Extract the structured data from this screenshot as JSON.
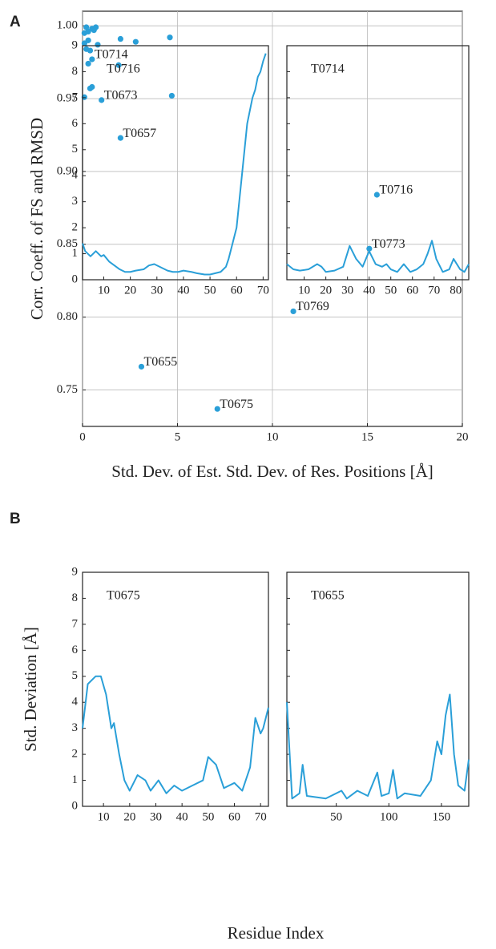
{
  "panel_labels": [
    "A",
    "B"
  ],
  "shared_axes": {
    "y_label": "Std. Deviation [Å]",
    "x_label": "Residue Index"
  },
  "chart_data": [
    {
      "type": "scatter",
      "x_label": "Std. Dev. of Est. Std. Dev. of Res. Positions [Å]",
      "y_label": "Corr. Coeff. of FS and RMSD",
      "color": "#2a9fd8",
      "x": [
        0.2,
        0.5,
        0.7,
        0.3,
        0.6,
        0.1,
        0.3,
        0.8,
        0.1,
        0.4,
        0.2,
        0.5,
        0.3,
        2.0,
        2.8,
        4.6,
        1.9,
        0.5,
        0.4,
        0.1,
        1.0,
        4.7,
        2.0,
        15.5,
        15.1,
        11.1,
        3.1,
        7.1
      ],
      "y": [
        0.999,
        0.998,
        0.999,
        0.996,
        0.997,
        0.995,
        0.99,
        0.987,
        0.988,
        0.983,
        0.984,
        0.977,
        0.974,
        0.991,
        0.989,
        0.992,
        0.973,
        0.958,
        0.957,
        0.951,
        0.949,
        0.952,
        0.923,
        0.884,
        0.847,
        0.804,
        0.766,
        0.737
      ],
      "annotations": [
        {
          "text": "T0714",
          "x": 0.5,
          "y": 0.977
        },
        {
          "text": "T0673",
          "x": 1.0,
          "y": 0.949
        },
        {
          "text": "T0657",
          "x": 2.0,
          "y": 0.923
        },
        {
          "text": "T0716",
          "x": 15.5,
          "y": 0.884
        },
        {
          "text": "T0773",
          "x": 15.1,
          "y": 0.847
        },
        {
          "text": "T0769",
          "x": 11.1,
          "y": 0.804
        },
        {
          "text": "T0655",
          "x": 3.1,
          "y": 0.766
        },
        {
          "text": "T0675",
          "x": 7.1,
          "y": 0.737
        }
      ],
      "xlim": [
        0,
        20
      ],
      "xticks": [
        0,
        5,
        10,
        15,
        20
      ],
      "ylim": [
        0.725,
        1.01
      ],
      "yticks": [
        {
          "value": 0.75,
          "label": "0.75"
        },
        {
          "value": 0.8,
          "label": "0.80"
        },
        {
          "value": 0.85,
          "label": "0.85"
        },
        {
          "value": 0.9,
          "label": "0.90"
        },
        {
          "value": 0.95,
          "label": "0.95"
        },
        {
          "value": 1.0,
          "label": "1.00"
        }
      ],
      "grid": true
    },
    {
      "type": "line",
      "title": "T0716",
      "color": "#2a9fd8",
      "x": [
        2,
        3,
        5,
        7,
        9,
        10,
        12,
        14,
        16,
        18,
        20,
        22,
        25,
        27,
        29,
        31,
        32,
        34,
        36,
        38,
        40,
        43,
        45,
        48,
        50,
        52,
        54,
        56,
        57,
        58,
        59,
        60,
        61,
        62,
        63,
        64,
        65,
        66,
        67,
        68,
        69,
        70,
        71
      ],
      "values": [
        1.4,
        1.1,
        0.9,
        1.1,
        0.9,
        0.95,
        0.7,
        0.55,
        0.4,
        0.3,
        0.3,
        0.35,
        0.4,
        0.55,
        0.6,
        0.5,
        0.45,
        0.35,
        0.3,
        0.3,
        0.35,
        0.3,
        0.25,
        0.2,
        0.2,
        0.25,
        0.3,
        0.5,
        0.8,
        1.2,
        1.6,
        2.0,
        3.0,
        4.0,
        5.0,
        6.0,
        6.5,
        7.0,
        7.3,
        7.8,
        8.0,
        8.4,
        8.7
      ],
      "xlim": [
        2,
        72
      ],
      "xticks": [
        10,
        20,
        30,
        40,
        50,
        60,
        70
      ],
      "ylim": [
        0,
        9
      ],
      "yticks": [
        0,
        1,
        2,
        3,
        4,
        5,
        6,
        7,
        8,
        9
      ],
      "grid": false
    },
    {
      "type": "line",
      "title": "T0714",
      "color": "#2a9fd8",
      "x": [
        2,
        5,
        8,
        12,
        16,
        18,
        20,
        24,
        28,
        31,
        34,
        37,
        40,
        43,
        46,
        48,
        50,
        53,
        56,
        59,
        62,
        65,
        67,
        69,
        71,
        74,
        77,
        79,
        82,
        84,
        86
      ],
      "values": [
        0.6,
        0.4,
        0.35,
        0.4,
        0.6,
        0.5,
        0.3,
        0.35,
        0.5,
        1.3,
        0.8,
        0.5,
        1.1,
        0.6,
        0.5,
        0.6,
        0.4,
        0.3,
        0.6,
        0.3,
        0.4,
        0.6,
        1.0,
        1.5,
        0.8,
        0.3,
        0.4,
        0.8,
        0.4,
        0.3,
        0.6
      ],
      "xlim": [
        2,
        86
      ],
      "xticks": [
        10,
        20,
        30,
        40,
        50,
        60,
        70,
        80
      ],
      "ylim": [
        0,
        9
      ],
      "yticks": [
        0,
        1,
        2,
        3,
        4,
        5,
        6,
        7,
        8,
        9
      ],
      "grid": false
    },
    {
      "type": "line",
      "title": "T0675",
      "color": "#2a9fd8",
      "x": [
        2,
        4,
        7,
        9,
        11,
        13,
        14,
        16,
        18,
        20,
        23,
        26,
        28,
        31,
        34,
        37,
        40,
        44,
        48,
        50,
        53,
        56,
        60,
        63,
        66,
        68,
        70,
        71,
        73
      ],
      "values": [
        3.0,
        4.7,
        5.0,
        5.0,
        4.3,
        3.0,
        3.2,
        2.0,
        1.0,
        0.6,
        1.2,
        1.0,
        0.6,
        1.0,
        0.5,
        0.8,
        0.6,
        0.8,
        1.0,
        1.9,
        1.6,
        0.7,
        0.9,
        0.6,
        1.5,
        3.4,
        2.8,
        3.0,
        3.8
      ],
      "xlim": [
        2,
        73
      ],
      "xticks": [
        10,
        20,
        30,
        40,
        50,
        60,
        70
      ],
      "ylim": [
        0,
        9
      ],
      "yticks": [
        0,
        1,
        2,
        3,
        4,
        5,
        6,
        7,
        8,
        9
      ],
      "grid": false
    },
    {
      "type": "line",
      "title": "T0655",
      "color": "#2a9fd8",
      "x": [
        3,
        8,
        15,
        18,
        22,
        40,
        55,
        60,
        70,
        80,
        89,
        93,
        100,
        104,
        108,
        115,
        130,
        140,
        146,
        150,
        154,
        158,
        162,
        166,
        172,
        176
      ],
      "values": [
        4.0,
        0.3,
        0.5,
        1.6,
        0.4,
        0.3,
        0.6,
        0.3,
        0.6,
        0.4,
        1.3,
        0.4,
        0.5,
        1.4,
        0.3,
        0.5,
        0.4,
        1.0,
        2.5,
        2.0,
        3.5,
        4.3,
        2.0,
        0.8,
        0.6,
        1.8
      ],
      "xlim": [
        3,
        176
      ],
      "xticks": [
        50,
        100,
        150
      ],
      "ylim": [
        0,
        9
      ],
      "yticks": [
        0,
        1,
        2,
        3,
        4,
        5,
        6,
        7,
        8,
        9
      ],
      "grid": false
    }
  ]
}
